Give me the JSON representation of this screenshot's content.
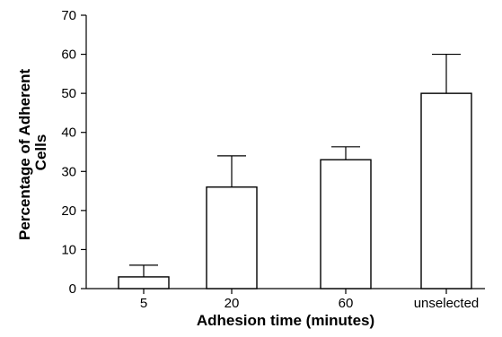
{
  "chart_data": {
    "type": "bar",
    "categories": [
      "5",
      "20",
      "60",
      "unselected"
    ],
    "values": [
      3,
      26,
      33,
      50
    ],
    "error_upper": [
      6,
      34,
      36.3,
      60
    ],
    "xlabel": "Adhesion time (minutes)",
    "ylabel": "Percentage of Adherent Cells",
    "ylim": [
      0,
      70
    ],
    "yticks": [
      0,
      10,
      20,
      30,
      40,
      50,
      60,
      70
    ],
    "grid": false,
    "legend": "none",
    "colors": {
      "bar_fill": "#ffffff",
      "stroke": "#000000"
    }
  }
}
